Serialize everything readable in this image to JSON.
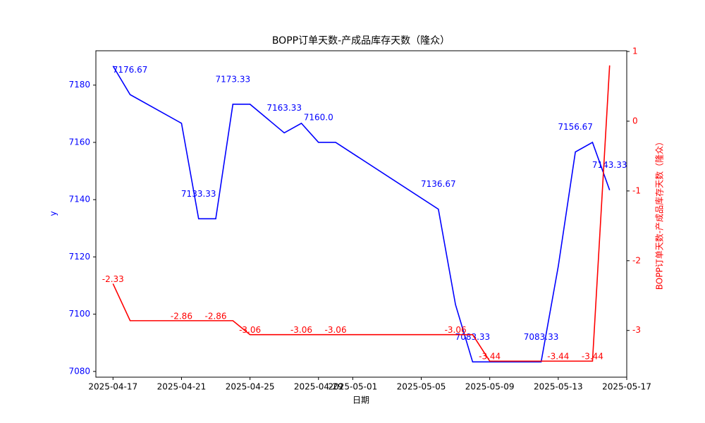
{
  "chart_data": {
    "type": "line",
    "title": "BOPP订单天数-产成品库存天数（隆众）",
    "xlabel": "日期",
    "ylabel": "y",
    "y2label": "BOPP订单天数-产成品库存天数（隆众）",
    "x": [
      "2025-04-17",
      "2025-04-18",
      "2025-04-21",
      "2025-04-22",
      "2025-04-23",
      "2025-04-24",
      "2025-04-25",
      "2025-04-27",
      "2025-04-28",
      "2025-04-29",
      "2025-04-30",
      "2025-05-06",
      "2025-05-07",
      "2025-05-08",
      "2025-05-09",
      "2025-05-12",
      "2025-05-13",
      "2025-05-14",
      "2025-05-15",
      "2025-05-16"
    ],
    "series": [
      {
        "name": "y",
        "color": "#0000ff",
        "axis": "y",
        "values": [
          7186.67,
          7176.67,
          7166.67,
          7133.33,
          7133.33,
          7173.33,
          7173.33,
          7163.33,
          7166.67,
          7160.0,
          7160.0,
          7136.67,
          7103.33,
          7083.33,
          7083.33,
          7083.33,
          7116.67,
          7156.67,
          7160.0,
          7143.33
        ],
        "value_labels": [
          null,
          "7176.67",
          null,
          "7133.33",
          null,
          "7173.33",
          null,
          "7163.33",
          null,
          "7160.0",
          null,
          "7136.67",
          null,
          "7083.33",
          null,
          "7083.33",
          null,
          "7156.67",
          null,
          "7143.33"
        ]
      },
      {
        "name": "BOPP订单天数-产成品库存天数（隆众）",
        "color": "#ff0000",
        "axis": "y2",
        "values": [
          -2.33,
          -2.86,
          -2.86,
          -2.86,
          -2.86,
          -2.86,
          -3.06,
          -3.06,
          -3.06,
          -3.06,
          -3.06,
          -3.06,
          -3.06,
          -3.06,
          -3.44,
          -3.44,
          -3.44,
          -3.44,
          -3.44,
          0.8
        ],
        "value_labels": [
          "-2.33",
          null,
          "-2.86",
          null,
          "-2.86",
          null,
          "-3.06",
          null,
          "-3.06",
          null,
          "-3.06",
          null,
          "-3.06",
          null,
          "-3.44",
          null,
          "-3.44",
          null,
          "-3.44",
          null
        ]
      }
    ],
    "xlim": [
      "2025-04-16",
      "2025-05-17"
    ],
    "xticks": [
      "2025-04-17",
      "2025-04-21",
      "2025-04-25",
      "2025-04-29",
      "2025-05-01",
      "2025-05-05",
      "2025-05-09",
      "2025-05-13",
      "2025-05-17"
    ],
    "ylim": [
      7078,
      7192
    ],
    "yticks": [
      7080,
      7100,
      7120,
      7140,
      7160,
      7180
    ],
    "y2lim": [
      -3.67,
      1.01
    ],
    "y2ticks": [
      -3,
      -2,
      -1,
      0,
      1
    ]
  }
}
